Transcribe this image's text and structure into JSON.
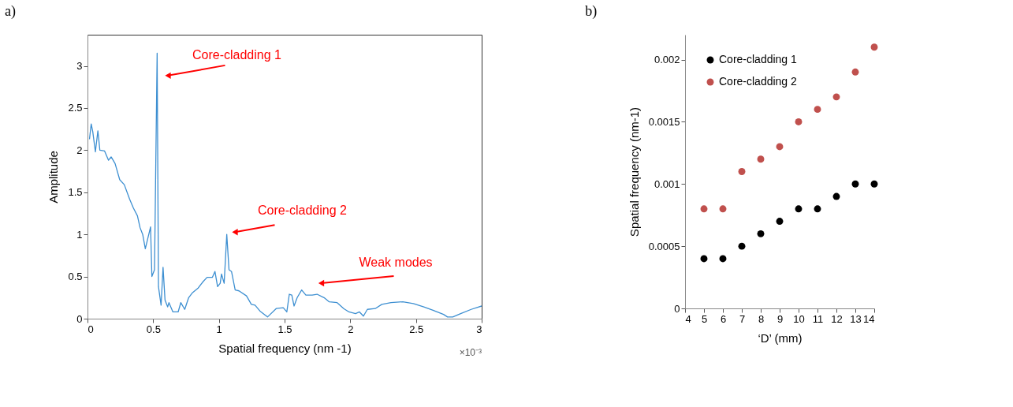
{
  "chart_data": [
    {
      "type": "line",
      "title": "a)",
      "xlabel": "Spatial frequency (nm -1)",
      "ylabel": "Amplitude",
      "x": [
        0.015,
        0.028,
        0.04,
        0.06,
        0.079,
        0.094,
        0.13,
        0.16,
        0.18,
        0.21,
        0.245,
        0.28,
        0.32,
        0.35,
        0.38,
        0.4,
        0.42,
        0.44,
        0.48,
        0.49,
        0.51,
        0.53,
        0.54,
        0.56,
        0.575,
        0.59,
        0.61,
        0.62,
        0.65,
        0.69,
        0.71,
        0.74,
        0.77,
        0.8,
        0.84,
        0.88,
        0.91,
        0.95,
        0.97,
        0.99,
        1.01,
        1.02,
        1.04,
        1.06,
        1.077,
        1.096,
        1.124,
        1.153,
        1.21,
        1.247,
        1.275,
        1.313,
        1.37,
        1.436,
        1.49,
        1.517,
        1.536,
        1.555,
        1.572,
        1.596,
        1.63,
        1.662,
        1.71,
        1.747,
        1.8,
        1.84,
        1.9,
        1.95,
        1.99,
        2.04,
        2.07,
        2.1,
        2.13,
        2.19,
        2.24,
        2.31,
        2.4,
        2.48,
        2.56,
        2.63,
        2.71,
        2.74,
        2.78,
        2.84,
        2.92,
        3.0
      ],
      "series": [
        {
          "color": "#3d8fd1",
          "values": [
            2.13,
            2.31,
            2.22,
            1.98,
            2.23,
            2.0,
            1.99,
            1.88,
            1.92,
            1.84,
            1.65,
            1.59,
            1.42,
            1.31,
            1.22,
            1.08,
            1.0,
            0.83,
            1.09,
            0.5,
            0.58,
            3.15,
            0.38,
            0.16,
            0.61,
            0.22,
            0.14,
            0.19,
            0.08,
            0.08,
            0.19,
            0.11,
            0.25,
            0.31,
            0.36,
            0.44,
            0.49,
            0.49,
            0.56,
            0.38,
            0.42,
            0.53,
            0.42,
            1.0,
            0.58,
            0.56,
            0.34,
            0.33,
            0.27,
            0.17,
            0.16,
            0.09,
            0.02,
            0.12,
            0.13,
            0.08,
            0.29,
            0.28,
            0.15,
            0.25,
            0.34,
            0.28,
            0.28,
            0.29,
            0.25,
            0.2,
            0.19,
            0.12,
            0.08,
            0.06,
            0.08,
            0.03,
            0.11,
            0.12,
            0.17,
            0.19,
            0.2,
            0.18,
            0.14,
            0.1,
            0.05,
            0.02,
            0.02,
            0.06,
            0.11,
            0.15
          ]
        }
      ],
      "xlim": [
        0,
        3
      ],
      "xticks": [
        0,
        0.5,
        1,
        1.5,
        2,
        2.5,
        3
      ],
      "ylim": [
        0,
        3.37
      ],
      "yticks": [
        0,
        0.5,
        1,
        1.5,
        2,
        2.5,
        3
      ],
      "grid": false,
      "marker": "none",
      "line_style": "solid",
      "annotations": [
        "Core-cladding 1",
        "Core-cladding 2",
        "Weak modes",
        "×10⁻³"
      ]
    },
    {
      "type": "scatter",
      "title": "b)",
      "xlabel": "‘D’ (mm)",
      "ylabel": "Spatial frequency (nm-1)",
      "x": [
        5,
        6,
        7,
        8,
        9,
        10,
        11,
        12,
        13,
        14
      ],
      "series": [
        {
          "name": "Core-cladding 1",
          "color": "#000000",
          "values": [
            0.0004,
            0.0004,
            0.0005,
            0.0006,
            0.0007,
            0.0008,
            0.0008,
            0.0009,
            0.001,
            0.001
          ]
        },
        {
          "name": "Core-cladding 2",
          "color": "#c0504d",
          "values": [
            0.0008,
            0.0008,
            0.0011,
            0.0012,
            0.0013,
            0.0015,
            0.0016,
            0.0017,
            0.0019,
            0.0021
          ]
        }
      ],
      "xlim": [
        4,
        14
      ],
      "xticks": [
        4,
        5,
        6,
        7,
        8,
        9,
        10,
        11,
        12,
        13,
        14
      ],
      "ylim": [
        0,
        0.0022
      ],
      "yticks": [
        0,
        0.0005,
        0.001,
        0.0015,
        0.002
      ],
      "grid": false,
      "legend": "top left",
      "marker": "circle"
    }
  ]
}
